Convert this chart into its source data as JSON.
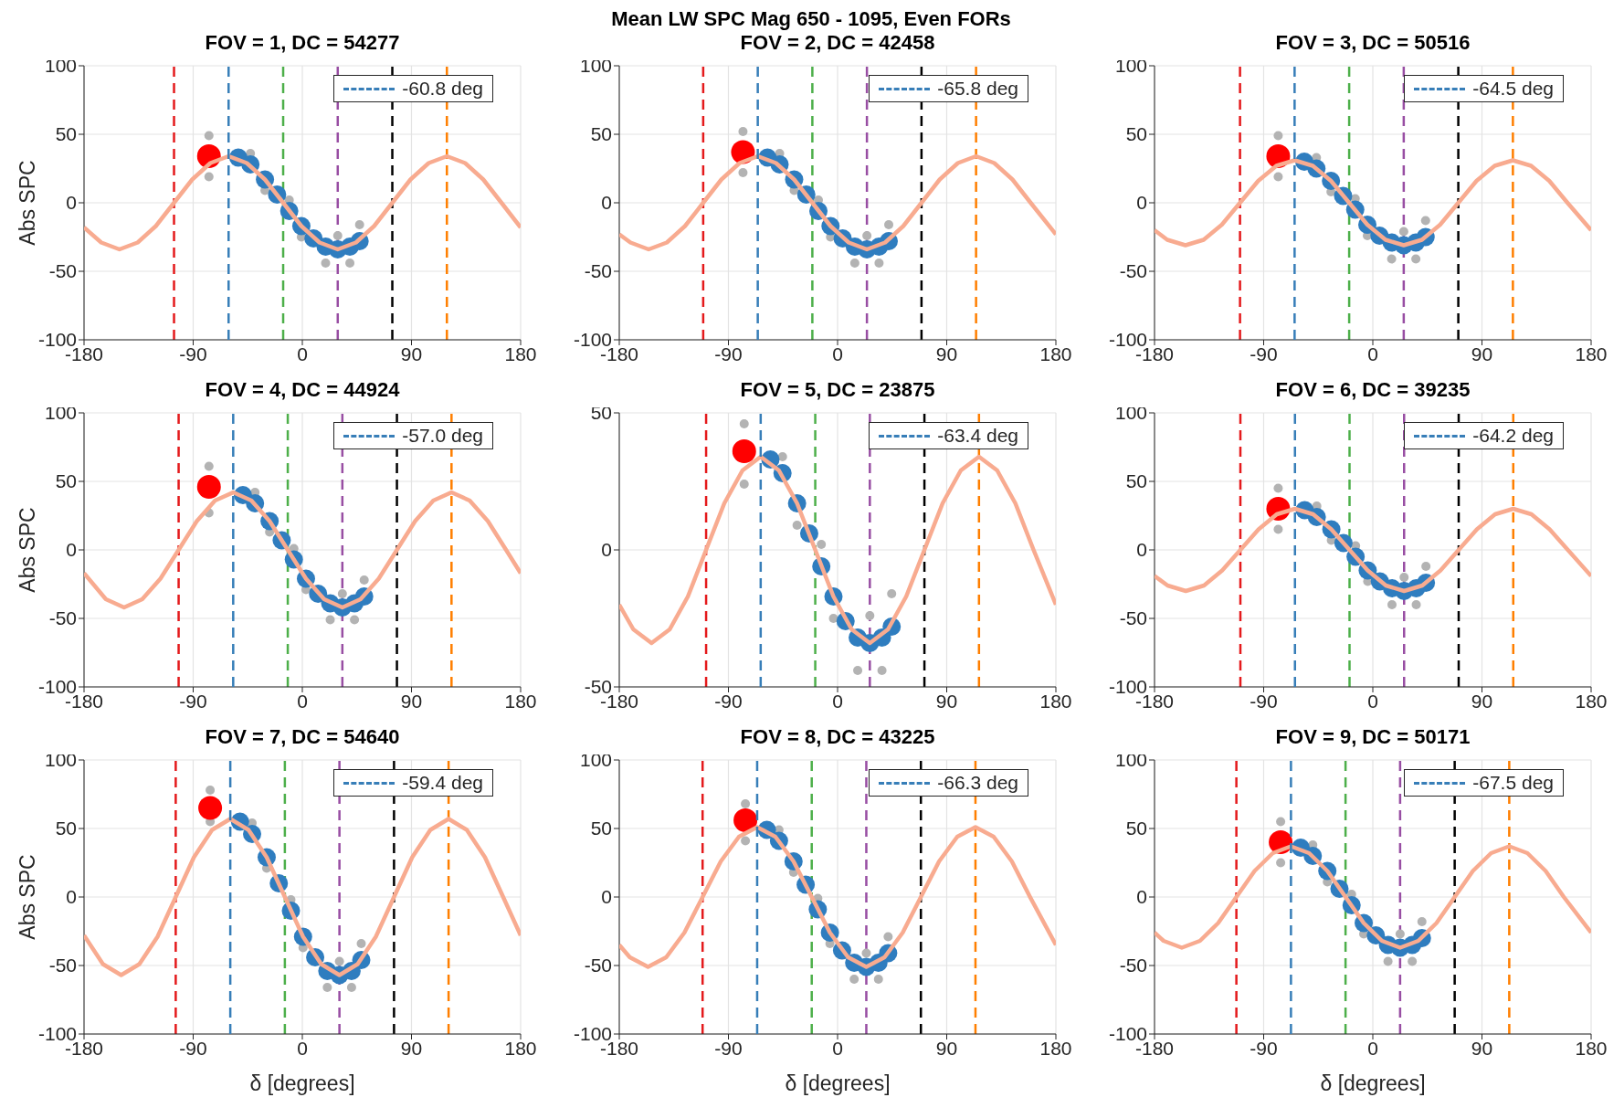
{
  "chart_data": [
    {
      "type": "line",
      "title": "FOV = 1, DC = 54277",
      "ylabel": "Abs SPC",
      "annotations": [
        "Mean LW SPC Mag 650 - 1095, Even FORs"
      ],
      "xlim": [
        -180,
        180
      ],
      "xticks": [
        -180,
        -90,
        0,
        90,
        180
      ],
      "ylim": [
        -100,
        100
      ],
      "yticks": [
        -100,
        -50,
        0,
        50,
        100
      ],
      "grid": true,
      "legend": "top right",
      "marker": "circle",
      "ref_lines": [
        {
          "axis": "x",
          "value": -105.8,
          "color": "#e41a1c",
          "line_style": "dashed"
        },
        {
          "axis": "x",
          "value": -15.8,
          "color": "#4daf4a",
          "line_style": "dashed"
        },
        {
          "axis": "x",
          "value": 29.2,
          "color": "#984ea3",
          "line_style": "dashed"
        },
        {
          "axis": "x",
          "value": 74.2,
          "color": "#000000",
          "line_style": "dashed"
        },
        {
          "axis": "x",
          "value": 119.2,
          "color": "#ff7f00",
          "line_style": "dashed"
        }
      ],
      "series": [
        {
          "type": "scatter",
          "color": "#b3b3b3",
          "x": [
            -77,
            -77,
            -42.8,
            -30.8,
            -10.8,
            -0.8,
            19.2,
            29.2,
            39.2,
            47.2
          ],
          "values": [
            49,
            19,
            36,
            9,
            2,
            -25,
            -44,
            -24,
            -44,
            -16
          ]
        },
        {
          "type": "scatter",
          "color": "#2f7dbf",
          "x": [
            -52.8,
            -42.8,
            -30.8,
            -20.8,
            -10.8,
            -0.8,
            9.2,
            19.2,
            29.2,
            39.2,
            47.2
          ],
          "values": [
            33,
            28,
            17,
            6,
            -6,
            -17,
            -26,
            -32,
            -34,
            -32,
            -28
          ]
        },
        {
          "color": "#f8ab90",
          "marker": "none",
          "x": [
            -180,
            -165.8,
            -150.8,
            -135.8,
            -120.8,
            -105.8,
            -90.8,
            -75.8,
            -60.8,
            -45.8,
            -30.8,
            -15.8,
            -0.8,
            14.2,
            29.2,
            44.2,
            59.2,
            74.2,
            89.2,
            104.2,
            119.2,
            134.2,
            149.2,
            164.2,
            180
          ],
          "values": [
            -18,
            -29,
            -34,
            -29,
            -17,
            0,
            17,
            29,
            34,
            29,
            17,
            0,
            -17,
            -29,
            -34,
            -29,
            -17,
            0,
            17,
            29,
            34,
            29,
            17,
            0,
            -18
          ]
        },
        {
          "type": "scatter",
          "color": "#ff0000",
          "x": [
            -77
          ],
          "values": [
            34
          ]
        },
        {
          "type": "line",
          "name": "-60.8 deg",
          "color": "#377eb8",
          "line_style": "dashed",
          "marker": "none",
          "x": [
            -60.8,
            -60.8
          ],
          "values": [
            -100,
            100
          ]
        }
      ]
    },
    {
      "type": "line",
      "title": "FOV = 2, DC = 42458",
      "xlim": [
        -180,
        180
      ],
      "xticks": [
        -180,
        -90,
        0,
        90,
        180
      ],
      "ylim": [
        -100,
        100
      ],
      "yticks": [
        -100,
        -50,
        0,
        50,
        100
      ],
      "grid": true,
      "legend": "top right",
      "marker": "circle",
      "ref_lines": [
        {
          "axis": "x",
          "value": -110.8,
          "color": "#e41a1c",
          "line_style": "dashed"
        },
        {
          "axis": "x",
          "value": -20.8,
          "color": "#4daf4a",
          "line_style": "dashed"
        },
        {
          "axis": "x",
          "value": 24.2,
          "color": "#984ea3",
          "line_style": "dashed"
        },
        {
          "axis": "x",
          "value": 69.2,
          "color": "#000000",
          "line_style": "dashed"
        },
        {
          "axis": "x",
          "value": 114.2,
          "color": "#ff7f00",
          "line_style": "dashed"
        }
      ],
      "series": [
        {
          "type": "scatter",
          "color": "#b3b3b3",
          "x": [
            -78,
            -78,
            -47.8,
            -35.8,
            -15.8,
            -5.8,
            14.2,
            24.2,
            34.2,
            42.2
          ],
          "values": [
            52,
            22,
            36,
            9,
            2,
            -25,
            -44,
            -24,
            -44,
            -16
          ]
        },
        {
          "type": "scatter",
          "color": "#2f7dbf",
          "x": [
            -57.8,
            -47.8,
            -35.8,
            -25.8,
            -15.8,
            -5.8,
            4.2,
            14.2,
            24.2,
            34.2,
            42.2
          ],
          "values": [
            33,
            28,
            17,
            6,
            -6,
            -17,
            -26,
            -32,
            -34,
            -32,
            -28
          ]
        },
        {
          "color": "#f8ab90",
          "marker": "none",
          "x": [
            -180,
            -170.8,
            -155.8,
            -140.8,
            -125.8,
            -110.8,
            -95.8,
            -80.8,
            -65.8,
            -50.8,
            -35.8,
            -20.8,
            -5.8,
            9.2,
            24.2,
            39.2,
            54.2,
            69.2,
            84.2,
            99.2,
            114.2,
            129.2,
            144.2,
            159.2,
            180
          ],
          "values": [
            -23,
            -29,
            -34,
            -29,
            -17,
            0,
            17,
            29,
            34,
            29,
            17,
            0,
            -17,
            -29,
            -34,
            -29,
            -17,
            0,
            17,
            29,
            34,
            29,
            17,
            0,
            -23
          ]
        },
        {
          "type": "scatter",
          "color": "#ff0000",
          "x": [
            -78
          ],
          "values": [
            37
          ]
        },
        {
          "type": "line",
          "name": "-65.8 deg",
          "color": "#377eb8",
          "line_style": "dashed",
          "marker": "none",
          "x": [
            -65.8,
            -65.8
          ],
          "values": [
            -100,
            100
          ]
        }
      ]
    },
    {
      "type": "line",
      "title": "FOV = 3, DC = 50516",
      "xlim": [
        -180,
        180
      ],
      "xticks": [
        -180,
        -90,
        0,
        90,
        180
      ],
      "ylim": [
        -100,
        100
      ],
      "yticks": [
        -100,
        -50,
        0,
        50,
        100
      ],
      "grid": true,
      "legend": "top right",
      "marker": "circle",
      "ref_lines": [
        {
          "axis": "x",
          "value": -109.5,
          "color": "#e41a1c",
          "line_style": "dashed"
        },
        {
          "axis": "x",
          "value": -19.5,
          "color": "#4daf4a",
          "line_style": "dashed"
        },
        {
          "axis": "x",
          "value": 25.5,
          "color": "#984ea3",
          "line_style": "dashed"
        },
        {
          "axis": "x",
          "value": 70.5,
          "color": "#000000",
          "line_style": "dashed"
        },
        {
          "axis": "x",
          "value": 115.5,
          "color": "#ff7f00",
          "line_style": "dashed"
        }
      ],
      "series": [
        {
          "type": "scatter",
          "color": "#b3b3b3",
          "x": [
            -78,
            -78,
            -46.5,
            -34.5,
            -14.5,
            -4.5,
            15.5,
            25.5,
            35.5,
            43.5
          ],
          "values": [
            49,
            19,
            33,
            8,
            3,
            -24,
            -41,
            -21,
            -41,
            -13
          ]
        },
        {
          "type": "scatter",
          "color": "#2f7dbf",
          "x": [
            -56.5,
            -46.5,
            -34.5,
            -24.5,
            -14.5,
            -4.5,
            5.5,
            15.5,
            25.5,
            35.5,
            43.5
          ],
          "values": [
            30,
            25,
            16,
            5,
            -5,
            -16,
            -24,
            -29,
            -31,
            -29,
            -25
          ]
        },
        {
          "color": "#f8ab90",
          "marker": "none",
          "x": [
            -180,
            -169.5,
            -154.5,
            -139.5,
            -124.5,
            -109.5,
            -94.5,
            -79.5,
            -64.5,
            -49.5,
            -34.5,
            -19.5,
            -4.5,
            10.5,
            25.5,
            40.5,
            55.5,
            70.5,
            85.5,
            100.5,
            115.5,
            130.5,
            145.5,
            160.5,
            180
          ],
          "values": [
            -20,
            -27,
            -31,
            -27,
            -16,
            0,
            16,
            27,
            31,
            27,
            16,
            0,
            -16,
            -27,
            -31,
            -27,
            -16,
            0,
            16,
            27,
            31,
            27,
            16,
            0,
            -20
          ]
        },
        {
          "type": "scatter",
          "color": "#ff0000",
          "x": [
            -78
          ],
          "values": [
            34
          ]
        },
        {
          "type": "line",
          "name": "-64.5 deg",
          "color": "#377eb8",
          "line_style": "dashed",
          "marker": "none",
          "x": [
            -64.5,
            -64.5
          ],
          "values": [
            -100,
            100
          ]
        }
      ]
    },
    {
      "type": "line",
      "title": "FOV = 4, DC = 44924",
      "ylabel": "Abs SPC",
      "xlim": [
        -180,
        180
      ],
      "xticks": [
        -180,
        -90,
        0,
        90,
        180
      ],
      "ylim": [
        -100,
        100
      ],
      "yticks": [
        -100,
        -50,
        0,
        50,
        100
      ],
      "grid": true,
      "legend": "top right",
      "marker": "circle",
      "ref_lines": [
        {
          "axis": "x",
          "value": -102,
          "color": "#e41a1c",
          "line_style": "dashed"
        },
        {
          "axis": "x",
          "value": -12,
          "color": "#4daf4a",
          "line_style": "dashed"
        },
        {
          "axis": "x",
          "value": 33,
          "color": "#984ea3",
          "line_style": "dashed"
        },
        {
          "axis": "x",
          "value": 78,
          "color": "#000000",
          "line_style": "dashed"
        },
        {
          "axis": "x",
          "value": 123,
          "color": "#ff7f00",
          "line_style": "dashed"
        }
      ],
      "series": [
        {
          "type": "scatter",
          "color": "#b3b3b3",
          "x": [
            -77,
            -77,
            -39,
            -27,
            -7,
            3,
            23,
            33,
            43,
            51
          ],
          "values": [
            61,
            27,
            42,
            13,
            1,
            -29,
            -51,
            -32,
            -51,
            -22
          ]
        },
        {
          "type": "scatter",
          "color": "#2f7dbf",
          "x": [
            -49,
            -39,
            -27,
            -17,
            -7,
            3,
            13,
            23,
            33,
            43,
            51
          ],
          "values": [
            40,
            34,
            21,
            7,
            -7,
            -21,
            -32,
            -39,
            -42,
            -39,
            -34
          ]
        },
        {
          "color": "#f8ab90",
          "marker": "none",
          "x": [
            -180,
            -162,
            -147,
            -132,
            -117,
            -102,
            -87,
            -72,
            -57,
            -42,
            -27,
            -12,
            3,
            18,
            33,
            48,
            63,
            78,
            93,
            108,
            123,
            138,
            153,
            168,
            180
          ],
          "values": [
            -17,
            -36,
            -42,
            -36,
            -21,
            0,
            21,
            36,
            42,
            36,
            21,
            0,
            -21,
            -36,
            -42,
            -36,
            -21,
            0,
            21,
            36,
            42,
            36,
            21,
            0,
            -17
          ]
        },
        {
          "type": "scatter",
          "color": "#ff0000",
          "x": [
            -77
          ],
          "values": [
            46
          ]
        },
        {
          "type": "line",
          "name": "-57.0 deg",
          "color": "#377eb8",
          "line_style": "dashed",
          "marker": "none",
          "x": [
            -57,
            -57
          ],
          "values": [
            -100,
            100
          ]
        }
      ]
    },
    {
      "type": "line",
      "title": "FOV = 5, DC = 23875",
      "xlim": [
        -180,
        180
      ],
      "xticks": [
        -180,
        -90,
        0,
        90,
        180
      ],
      "ylim": [
        -50,
        50
      ],
      "yticks": [
        -50,
        0,
        50
      ],
      "grid": true,
      "legend": "top right",
      "marker": "circle",
      "ref_lines": [
        {
          "axis": "x",
          "value": -108.4,
          "color": "#e41a1c",
          "line_style": "dashed"
        },
        {
          "axis": "x",
          "value": -18.4,
          "color": "#4daf4a",
          "line_style": "dashed"
        },
        {
          "axis": "x",
          "value": 26.6,
          "color": "#984ea3",
          "line_style": "dashed"
        },
        {
          "axis": "x",
          "value": 71.6,
          "color": "#000000",
          "line_style": "dashed"
        },
        {
          "axis": "x",
          "value": 116.6,
          "color": "#ff7f00",
          "line_style": "dashed"
        }
      ],
      "series": [
        {
          "type": "scatter",
          "color": "#b3b3b3",
          "x": [
            -77,
            -77,
            -45.4,
            -33.4,
            -13.4,
            -3.4,
            16.6,
            26.6,
            36.6,
            44.6
          ],
          "values": [
            46,
            24,
            34,
            9,
            2,
            -25,
            -44,
            -24,
            -44,
            -16
          ]
        },
        {
          "type": "scatter",
          "color": "#2f7dbf",
          "x": [
            -55.4,
            -45.4,
            -33.4,
            -23.4,
            -13.4,
            -3.4,
            6.6,
            16.6,
            26.6,
            36.6,
            44.6
          ],
          "values": [
            33,
            28,
            17,
            6,
            -6,
            -17,
            -26,
            -32,
            -34,
            -32,
            -28
          ]
        },
        {
          "color": "#f8ab90",
          "marker": "none",
          "x": [
            -180,
            -168.4,
            -153.4,
            -138.4,
            -123.4,
            -108.4,
            -93.4,
            -78.4,
            -63.4,
            -48.4,
            -33.4,
            -18.4,
            -3.4,
            11.6,
            26.6,
            41.6,
            56.6,
            71.6,
            86.6,
            101.6,
            116.6,
            131.6,
            146.6,
            161.6,
            180
          ],
          "values": [
            -20,
            -29,
            -34,
            -29,
            -17,
            0,
            17,
            29,
            34,
            29,
            17,
            0,
            -17,
            -29,
            -34,
            -29,
            -17,
            0,
            17,
            29,
            34,
            29,
            17,
            0,
            -20
          ]
        },
        {
          "type": "scatter",
          "color": "#ff0000",
          "x": [
            -77
          ],
          "values": [
            36
          ]
        },
        {
          "type": "line",
          "name": "-63.4 deg",
          "color": "#377eb8",
          "line_style": "dashed",
          "marker": "none",
          "x": [
            -63.4,
            -63.4
          ],
          "values": [
            -50,
            50
          ]
        }
      ]
    },
    {
      "type": "line",
      "title": "FOV = 6, DC = 39235",
      "xlim": [
        -180,
        180
      ],
      "xticks": [
        -180,
        -90,
        0,
        90,
        180
      ],
      "ylim": [
        -100,
        100
      ],
      "yticks": [
        -100,
        -50,
        0,
        50,
        100
      ],
      "grid": true,
      "legend": "top right",
      "marker": "circle",
      "ref_lines": [
        {
          "axis": "x",
          "value": -109.2,
          "color": "#e41a1c",
          "line_style": "dashed"
        },
        {
          "axis": "x",
          "value": -19.2,
          "color": "#4daf4a",
          "line_style": "dashed"
        },
        {
          "axis": "x",
          "value": 25.8,
          "color": "#984ea3",
          "line_style": "dashed"
        },
        {
          "axis": "x",
          "value": 70.8,
          "color": "#000000",
          "line_style": "dashed"
        },
        {
          "axis": "x",
          "value": 115.8,
          "color": "#ff7f00",
          "line_style": "dashed"
        }
      ],
      "series": [
        {
          "type": "scatter",
          "color": "#b3b3b3",
          "x": [
            -78,
            -78,
            -46.2,
            -34.2,
            -14.2,
            -4.2,
            15.8,
            25.8,
            35.8,
            43.8
          ],
          "values": [
            45,
            15,
            32,
            7,
            3,
            -23,
            -40,
            -20,
            -40,
            -12
          ]
        },
        {
          "type": "scatter",
          "color": "#2f7dbf",
          "x": [
            -56.2,
            -46.2,
            -34.2,
            -24.2,
            -14.2,
            -4.2,
            5.8,
            15.8,
            25.8,
            35.8,
            43.8
          ],
          "values": [
            29,
            24,
            15,
            5,
            -5,
            -15,
            -23,
            -28,
            -30,
            -28,
            -24
          ]
        },
        {
          "color": "#f8ab90",
          "marker": "none",
          "x": [
            -180,
            -169.2,
            -154.2,
            -139.2,
            -124.2,
            -109.2,
            -94.2,
            -79.2,
            -64.2,
            -49.2,
            -34.2,
            -19.2,
            -4.2,
            10.8,
            25.8,
            40.8,
            55.8,
            70.8,
            85.8,
            100.8,
            115.8,
            130.8,
            145.8,
            160.8,
            180
          ],
          "values": [
            -19,
            -26,
            -30,
            -26,
            -15,
            0,
            15,
            26,
            30,
            26,
            15,
            0,
            -15,
            -26,
            -30,
            -26,
            -15,
            0,
            15,
            26,
            30,
            26,
            15,
            0,
            -19
          ]
        },
        {
          "type": "scatter",
          "color": "#ff0000",
          "x": [
            -78
          ],
          "values": [
            30
          ]
        },
        {
          "type": "line",
          "name": "-64.2 deg",
          "color": "#377eb8",
          "line_style": "dashed",
          "marker": "none",
          "x": [
            -64.2,
            -64.2
          ],
          "values": [
            -100,
            100
          ]
        }
      ]
    },
    {
      "type": "line",
      "title": "FOV = 7, DC = 54640",
      "ylabel": "Abs SPC",
      "xlabel": "δ [degrees]",
      "xlim": [
        -180,
        180
      ],
      "xticks": [
        -180,
        -90,
        0,
        90,
        180
      ],
      "ylim": [
        -100,
        100
      ],
      "yticks": [
        -100,
        -50,
        0,
        50,
        100
      ],
      "grid": true,
      "legend": "top right",
      "marker": "circle",
      "ref_lines": [
        {
          "axis": "x",
          "value": -104.4,
          "color": "#e41a1c",
          "line_style": "dashed"
        },
        {
          "axis": "x",
          "value": -14.4,
          "color": "#4daf4a",
          "line_style": "dashed"
        },
        {
          "axis": "x",
          "value": 30.6,
          "color": "#984ea3",
          "line_style": "dashed"
        },
        {
          "axis": "x",
          "value": 75.6,
          "color": "#000000",
          "line_style": "dashed"
        },
        {
          "axis": "x",
          "value": 120.6,
          "color": "#ff7f00",
          "line_style": "dashed"
        }
      ],
      "series": [
        {
          "type": "scatter",
          "color": "#b3b3b3",
          "x": [
            -76,
            -76,
            -41.4,
            -29.4,
            -9.4,
            0.6,
            20.6,
            30.6,
            40.6,
            48.6
          ],
          "values": [
            78,
            55,
            54,
            21,
            -2,
            -37,
            -66,
            -47,
            -66,
            -34
          ]
        },
        {
          "type": "scatter",
          "color": "#2f7dbf",
          "x": [
            -51.4,
            -41.4,
            -29.4,
            -19.4,
            -9.4,
            0.6,
            10.6,
            20.6,
            30.6,
            40.6,
            48.6
          ],
          "values": [
            55,
            46,
            29,
            10,
            -10,
            -29,
            -44,
            -54,
            -57,
            -54,
            -46
          ]
        },
        {
          "color": "#f8ab90",
          "marker": "none",
          "x": [
            -180,
            -164.4,
            -149.4,
            -134.4,
            -119.4,
            -104.4,
            -89.4,
            -74.4,
            -59.4,
            -44.4,
            -29.4,
            -14.4,
            0.6,
            15.6,
            30.6,
            45.6,
            60.6,
            75.6,
            90.6,
            105.6,
            120.6,
            135.6,
            150.6,
            165.6,
            180
          ],
          "values": [
            -28,
            -49,
            -57,
            -49,
            -29,
            0,
            29,
            49,
            57,
            49,
            29,
            0,
            -29,
            -49,
            -57,
            -49,
            -29,
            0,
            29,
            49,
            57,
            49,
            29,
            0,
            -28
          ]
        },
        {
          "type": "scatter",
          "color": "#ff0000",
          "x": [
            -76
          ],
          "values": [
            65
          ]
        },
        {
          "type": "line",
          "name": "-59.4 deg",
          "color": "#377eb8",
          "line_style": "dashed",
          "marker": "none",
          "x": [
            -59.4,
            -59.4
          ],
          "values": [
            -100,
            100
          ]
        }
      ]
    },
    {
      "type": "line",
      "title": "FOV = 8, DC = 43225",
      "xlabel": "δ [degrees]",
      "xlim": [
        -180,
        180
      ],
      "xticks": [
        -180,
        -90,
        0,
        90,
        180
      ],
      "ylim": [
        -100,
        100
      ],
      "yticks": [
        -100,
        -50,
        0,
        50,
        100
      ],
      "grid": true,
      "legend": "top right",
      "marker": "circle",
      "ref_lines": [
        {
          "axis": "x",
          "value": -111.3,
          "color": "#e41a1c",
          "line_style": "dashed"
        },
        {
          "axis": "x",
          "value": -21.3,
          "color": "#4daf4a",
          "line_style": "dashed"
        },
        {
          "axis": "x",
          "value": 23.7,
          "color": "#984ea3",
          "line_style": "dashed"
        },
        {
          "axis": "x",
          "value": 68.7,
          "color": "#000000",
          "line_style": "dashed"
        },
        {
          "axis": "x",
          "value": 113.7,
          "color": "#ff7f00",
          "line_style": "dashed"
        }
      ],
      "series": [
        {
          "type": "scatter",
          "color": "#b3b3b3",
          "x": [
            -76,
            -76,
            -48.3,
            -36.3,
            -16.3,
            -6.3,
            13.7,
            23.7,
            33.7,
            41.7
          ],
          "values": [
            68,
            41,
            49,
            18,
            -1,
            -34,
            -60,
            -41,
            -60,
            -29
          ]
        },
        {
          "type": "scatter",
          "color": "#2f7dbf",
          "x": [
            -58.3,
            -48.3,
            -36.3,
            -26.3,
            -16.3,
            -6.3,
            3.7,
            13.7,
            23.7,
            33.7,
            41.7
          ],
          "values": [
            49,
            41,
            26,
            9,
            -9,
            -26,
            -39,
            -48,
            -51,
            -48,
            -41
          ]
        },
        {
          "color": "#f8ab90",
          "marker": "none",
          "x": [
            -180,
            -171.3,
            -156.3,
            -141.3,
            -126.3,
            -111.3,
            -96.3,
            -81.3,
            -66.3,
            -51.3,
            -36.3,
            -21.3,
            -6.3,
            8.7,
            23.7,
            38.7,
            53.7,
            68.7,
            83.7,
            98.7,
            113.7,
            128.7,
            143.7,
            158.7,
            180
          ],
          "values": [
            -35,
            -44,
            -51,
            -44,
            -26,
            0,
            26,
            44,
            51,
            44,
            26,
            0,
            -26,
            -44,
            -51,
            -44,
            -26,
            0,
            26,
            44,
            51,
            44,
            26,
            0,
            -35
          ]
        },
        {
          "type": "scatter",
          "color": "#ff0000",
          "x": [
            -76
          ],
          "values": [
            56
          ]
        },
        {
          "type": "line",
          "name": "-66.3 deg",
          "color": "#377eb8",
          "line_style": "dashed",
          "marker": "none",
          "x": [
            -66.3,
            -66.3
          ],
          "values": [
            -100,
            100
          ]
        }
      ]
    },
    {
      "type": "line",
      "title": "FOV = 9, DC = 50171",
      "xlabel": "δ [degrees]",
      "xlim": [
        -180,
        180
      ],
      "xticks": [
        -180,
        -90,
        0,
        90,
        180
      ],
      "ylim": [
        -100,
        100
      ],
      "yticks": [
        -100,
        -50,
        0,
        50,
        100
      ],
      "grid": true,
      "legend": "top right",
      "marker": "circle",
      "ref_lines": [
        {
          "axis": "x",
          "value": -112.5,
          "color": "#e41a1c",
          "line_style": "dashed"
        },
        {
          "axis": "x",
          "value": -22.5,
          "color": "#4daf4a",
          "line_style": "dashed"
        },
        {
          "axis": "x",
          "value": 22.5,
          "color": "#984ea3",
          "line_style": "dashed"
        },
        {
          "axis": "x",
          "value": 67.5,
          "color": "#000000",
          "line_style": "dashed"
        },
        {
          "axis": "x",
          "value": 112.5,
          "color": "#ff7f00",
          "line_style": "dashed"
        }
      ],
      "series": [
        {
          "type": "scatter",
          "color": "#b3b3b3",
          "x": [
            -76,
            -76,
            -49.5,
            -37.5,
            -17.5,
            -7.5,
            12.5,
            22.5,
            32.5,
            40.5
          ],
          "values": [
            55,
            25,
            38,
            11,
            2,
            -27,
            -47,
            -27,
            -47,
            -18
          ]
        },
        {
          "type": "scatter",
          "color": "#2f7dbf",
          "x": [
            -59.5,
            -49.5,
            -37.5,
            -27.5,
            -17.5,
            -7.5,
            2.5,
            12.5,
            22.5,
            32.5,
            40.5
          ],
          "values": [
            36,
            30,
            19,
            6,
            -6,
            -19,
            -28,
            -35,
            -37,
            -35,
            -30
          ]
        },
        {
          "color": "#f8ab90",
          "marker": "none",
          "x": [
            -180,
            -172.5,
            -157.5,
            -142.5,
            -127.5,
            -112.5,
            -97.5,
            -82.5,
            -67.5,
            -52.5,
            -37.5,
            -22.5,
            -7.5,
            7.5,
            22.5,
            37.5,
            52.5,
            67.5,
            82.5,
            97.5,
            112.5,
            127.5,
            142.5,
            157.5,
            180
          ],
          "values": [
            -26,
            -32,
            -37,
            -32,
            -19,
            0,
            19,
            32,
            37,
            32,
            19,
            0,
            -19,
            -32,
            -37,
            -32,
            -19,
            0,
            19,
            32,
            37,
            32,
            19,
            0,
            -26
          ]
        },
        {
          "type": "scatter",
          "color": "#ff0000",
          "x": [
            -76
          ],
          "values": [
            40
          ]
        },
        {
          "type": "line",
          "name": "-67.5 deg",
          "color": "#377eb8",
          "line_style": "dashed",
          "marker": "none",
          "x": [
            -67.5,
            -67.5
          ],
          "values": [
            -100,
            100
          ]
        }
      ]
    }
  ]
}
